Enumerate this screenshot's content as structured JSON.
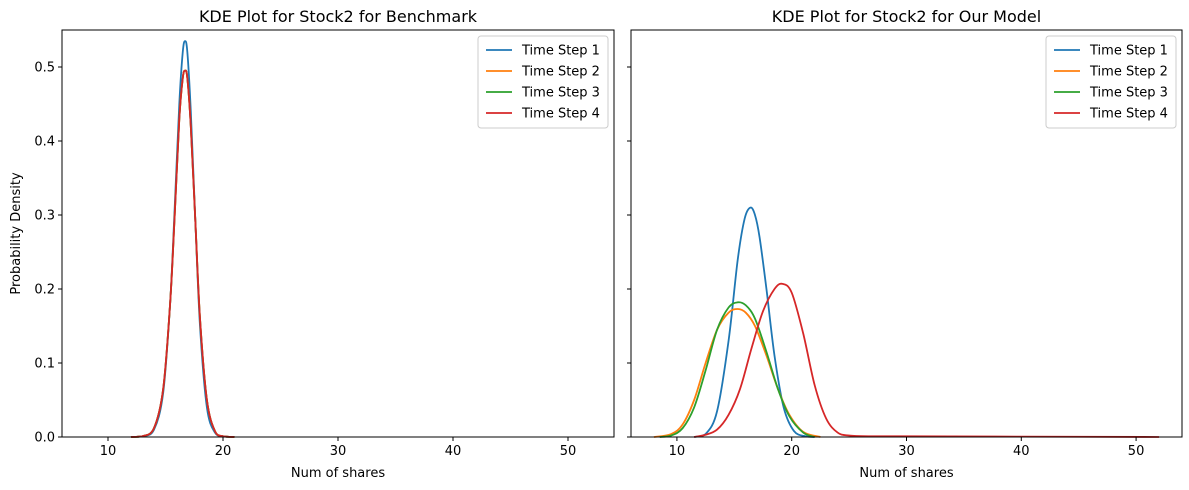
{
  "chart_data": [
    {
      "type": "line",
      "title": "KDE Plot for Stock2 for Benchmark",
      "xlabel": "Num of shares",
      "ylabel": "Probability Density",
      "xlim": [
        6,
        54
      ],
      "ylim": [
        0,
        0.55
      ],
      "xticks": [
        "10",
        "20",
        "30",
        "40",
        "50"
      ],
      "yticks": [
        "0.0",
        "0.1",
        "0.2",
        "0.3",
        "0.4",
        "0.5"
      ],
      "legend_position": "top-right",
      "grid": false,
      "series": [
        {
          "name": "Time Step 1",
          "color": "#1f77b4",
          "x": [
            12.0,
            13.0,
            14.0,
            14.8,
            15.4,
            15.8,
            16.2,
            16.5,
            16.7,
            16.9,
            17.2,
            17.6,
            18.0,
            18.6,
            19.3,
            20.0,
            21.0
          ],
          "y": [
            0.0,
            0.001,
            0.01,
            0.06,
            0.18,
            0.31,
            0.45,
            0.52,
            0.535,
            0.52,
            0.44,
            0.29,
            0.15,
            0.04,
            0.006,
            0.001,
            0.0
          ]
        },
        {
          "name": "Time Step 2",
          "color": "#ff7f0e",
          "x": [
            12.0,
            13.0,
            14.0,
            14.8,
            15.4,
            15.8,
            16.2,
            16.5,
            16.7,
            16.9,
            17.2,
            17.6,
            18.0,
            18.6,
            19.3,
            20.0,
            21.0
          ],
          "y": [
            0.0,
            0.001,
            0.012,
            0.065,
            0.18,
            0.3,
            0.43,
            0.485,
            0.495,
            0.485,
            0.42,
            0.29,
            0.16,
            0.05,
            0.008,
            0.001,
            0.0
          ]
        },
        {
          "name": "Time Step 3",
          "color": "#2ca02c",
          "x": [
            12.0,
            13.0,
            14.0,
            14.8,
            15.4,
            15.8,
            16.2,
            16.5,
            16.7,
            16.9,
            17.2,
            17.6,
            18.0,
            18.6,
            19.3,
            20.0,
            21.0
          ],
          "y": [
            0.0,
            0.001,
            0.012,
            0.065,
            0.18,
            0.3,
            0.43,
            0.485,
            0.495,
            0.485,
            0.42,
            0.29,
            0.16,
            0.05,
            0.008,
            0.001,
            0.0
          ]
        },
        {
          "name": "Time Step 4",
          "color": "#d62728",
          "x": [
            12.0,
            13.0,
            14.0,
            14.8,
            15.4,
            15.8,
            16.2,
            16.5,
            16.7,
            16.9,
            17.2,
            17.6,
            18.0,
            18.6,
            19.3,
            20.0,
            21.0
          ],
          "y": [
            0.0,
            0.001,
            0.012,
            0.065,
            0.18,
            0.3,
            0.43,
            0.485,
            0.495,
            0.485,
            0.42,
            0.29,
            0.16,
            0.05,
            0.008,
            0.001,
            0.0
          ]
        }
      ]
    },
    {
      "type": "line",
      "title": "KDE Plot for Stock2 for Our Model",
      "xlabel": "Num of shares",
      "ylabel": "",
      "xlim": [
        6,
        54
      ],
      "ylim": [
        0,
        0.55
      ],
      "xticks": [
        "10",
        "20",
        "30",
        "40",
        "50"
      ],
      "yticks": [
        "0.0",
        "0.1",
        "0.2",
        "0.3",
        "0.4",
        "0.5"
      ],
      "legend_position": "top-right",
      "grid": false,
      "series": [
        {
          "name": "Time Step 1",
          "color": "#1f77b4",
          "x": [
            11.5,
            12.5,
            13.5,
            14.5,
            15.3,
            15.9,
            16.4,
            16.8,
            17.2,
            17.8,
            18.5,
            19.3,
            20.2,
            21.2,
            22.0
          ],
          "y": [
            0.0,
            0.004,
            0.035,
            0.13,
            0.24,
            0.295,
            0.31,
            0.3,
            0.27,
            0.2,
            0.11,
            0.04,
            0.008,
            0.001,
            0.0
          ]
        },
        {
          "name": "Time Step 2",
          "color": "#ff7f0e",
          "x": [
            8.0,
            9.5,
            10.5,
            11.5,
            12.5,
            13.5,
            14.5,
            15.3,
            16.0,
            16.8,
            17.8,
            18.8,
            19.8,
            21.0,
            22.5
          ],
          "y": [
            0.0,
            0.004,
            0.017,
            0.05,
            0.1,
            0.145,
            0.168,
            0.173,
            0.168,
            0.15,
            0.11,
            0.065,
            0.03,
            0.007,
            0.0
          ]
        },
        {
          "name": "Time Step 3",
          "color": "#2ca02c",
          "x": [
            8.5,
            9.5,
            10.5,
            11.5,
            12.5,
            13.5,
            14.5,
            15.3,
            16.0,
            16.8,
            17.8,
            18.8,
            19.8,
            21.0,
            22.0
          ],
          "y": [
            0.0,
            0.002,
            0.012,
            0.04,
            0.09,
            0.145,
            0.175,
            0.182,
            0.178,
            0.16,
            0.115,
            0.065,
            0.028,
            0.006,
            0.0
          ]
        },
        {
          "name": "Time Step 4",
          "color": "#d62728",
          "x": [
            11.5,
            12.5,
            13.5,
            14.5,
            15.5,
            16.5,
            17.5,
            18.5,
            19.2,
            20.0,
            21.0,
            22.0,
            23.0,
            24.0,
            25.0,
            27.0,
            30.0,
            40.0,
            52.0
          ],
          "y": [
            0.0,
            0.003,
            0.01,
            0.03,
            0.065,
            0.12,
            0.17,
            0.2,
            0.207,
            0.195,
            0.14,
            0.07,
            0.025,
            0.006,
            0.002,
            0.001,
            0.001,
            0.0005,
            0.0
          ]
        }
      ]
    }
  ]
}
